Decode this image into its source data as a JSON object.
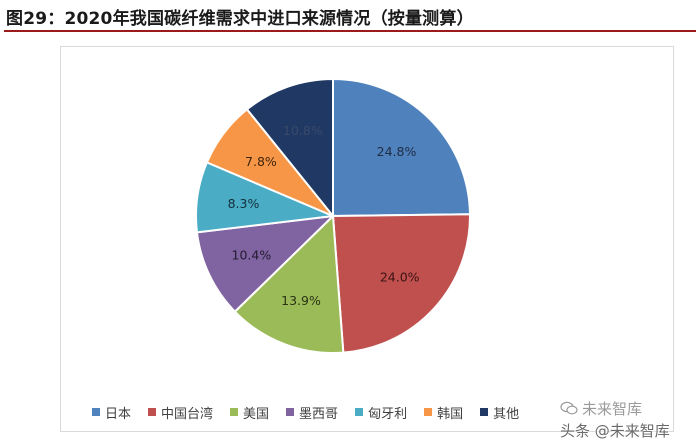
{
  "figure": {
    "title": "图29：2020年我国碳纤维需求中进口来源情况（按量测算）"
  },
  "chart_data": {
    "type": "pie",
    "start_angle_deg": 0,
    "direction": "clockwise",
    "slices": [
      {
        "name": "日本",
        "value": 24.8,
        "label": "24.8%",
        "color": "#4f81bd",
        "label_color": "#1f2d44"
      },
      {
        "name": "中国台湾",
        "value": 24.0,
        "label": "24.0%",
        "color": "#c0504d",
        "label_color": "#3a1414"
      },
      {
        "name": "美国",
        "value": 13.9,
        "label": "13.9%",
        "color": "#9bbb59",
        "label_color": "#2a3414"
      },
      {
        "name": "墨西哥",
        "value": 10.4,
        "label": "10.4%",
        "color": "#8064a2",
        "label_color": "#231a30"
      },
      {
        "name": "匈牙利",
        "value": 8.3,
        "label": "8.3%",
        "color": "#4bacc6",
        "label_color": "#123039"
      },
      {
        "name": "韩国",
        "value": 7.8,
        "label": "7.8%",
        "color": "#f79646",
        "label_color": "#3f250d"
      },
      {
        "name": "其他",
        "value": 10.8,
        "label": "10.8%",
        "color": "#1f3864",
        "label_color": "#3a4a6a"
      }
    ],
    "legend_position": "bottom"
  },
  "watermark": {
    "line1": "未来智库",
    "line2": "头条 @未来智库"
  }
}
